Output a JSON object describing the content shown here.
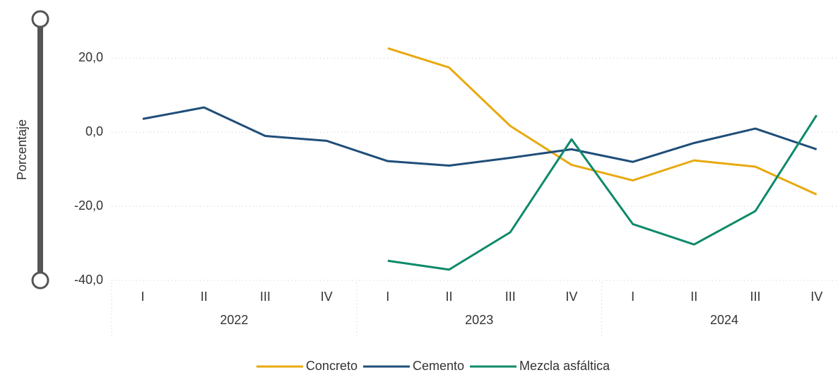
{
  "chart_data": {
    "type": "line",
    "y_axis_label": "Porcentaje",
    "categories": [
      "I",
      "II",
      "III",
      "IV",
      "I",
      "II",
      "III",
      "IV",
      "I",
      "II",
      "III",
      "IV"
    ],
    "category_groups": [
      "2022",
      "2023",
      "2024"
    ],
    "series": [
      {
        "name": "Concreto",
        "color": "#e8a90f",
        "values": [
          null,
          null,
          null,
          null,
          22.7,
          17.5,
          1.7,
          -8.8,
          -13.0,
          -7.6,
          -9.3,
          -16.8
        ]
      },
      {
        "name": "Cemento",
        "color": "#1f4e79",
        "values": [
          3.6,
          6.7,
          -1.0,
          -2.3,
          -7.8,
          -9.0,
          -6.9,
          -4.6,
          -8.0,
          -2.9,
          1.0,
          -4.6
        ]
      },
      {
        "name": "Mezcla asfáltica",
        "color": "#0e8a6a",
        "values": [
          null,
          null,
          null,
          null,
          -34.7,
          -37.1,
          -27.0,
          -1.9,
          -24.8,
          -30.3,
          -21.3,
          4.6
        ]
      }
    ],
    "ylim": [
      -40,
      30
    ],
    "yticks": [
      {
        "value": -40,
        "label": "-40,0"
      },
      {
        "value": -20,
        "label": "-20,0"
      },
      {
        "value": 0,
        "label": "0,0"
      },
      {
        "value": 20,
        "label": "20,0"
      }
    ],
    "grid": true,
    "legend": "bottom"
  }
}
